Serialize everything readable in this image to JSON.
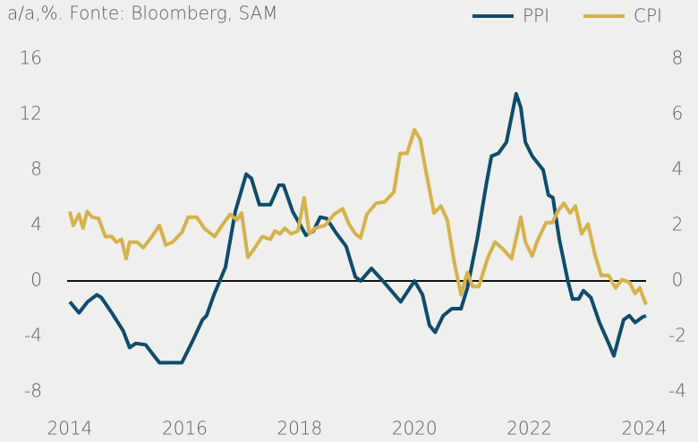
{
  "chart_data": {
    "type": "line",
    "title": "a/a,%. Fonte: Bloomberg, SAM",
    "legend": "top-right",
    "xlim": [
      2014,
      2024
    ],
    "xticks": [
      2014,
      2016,
      2018,
      2020,
      2022,
      2024
    ],
    "ylim": [
      -9,
      17
    ],
    "yticks": [
      -8,
      -4,
      0,
      4,
      8,
      12,
      16
    ],
    "y2lim": [
      -4.5,
      8.5
    ],
    "y2ticks": [
      -4,
      -2,
      0,
      2,
      4,
      6,
      8
    ],
    "series": [
      {
        "name": "PPI",
        "color": "#0f4c6b",
        "axis": "y",
        "x": [
          2014.0,
          2014.16,
          2014.31,
          2014.47,
          2014.55,
          2014.73,
          2014.93,
          2015.04,
          2015.15,
          2015.32,
          2015.43,
          2015.56,
          2015.95,
          2016.13,
          2016.31,
          2016.38,
          2016.51,
          2016.71,
          2016.88,
          2017.07,
          2017.16,
          2017.3,
          2017.49,
          2017.64,
          2017.72,
          2017.88,
          2018.11,
          2018.24,
          2018.36,
          2018.47,
          2018.63,
          2018.81,
          2018.97,
          2019.06,
          2019.25,
          2019.45,
          2019.76,
          2020.0,
          2020.14,
          2020.26,
          2020.36,
          2020.5,
          2020.65,
          2020.81,
          2020.92,
          2021.09,
          2021.25,
          2021.34,
          2021.46,
          2021.6,
          2021.77,
          2021.85,
          2021.93,
          2022.05,
          2022.24,
          2022.33,
          2022.41,
          2022.52,
          2022.67,
          2022.75,
          2022.86,
          2022.94,
          2023.07,
          2023.22,
          2023.38,
          2023.47,
          2023.56,
          2023.64,
          2023.74,
          2023.84,
          2023.97,
          2024.03
        ],
        "values": [
          -1.5,
          -2.3,
          -1.5,
          -1.0,
          -1.2,
          -2.3,
          -3.6,
          -4.8,
          -4.5,
          -4.6,
          -5.2,
          -5.9,
          -5.9,
          -4.4,
          -2.8,
          -2.5,
          -1.0,
          1.0,
          5.0,
          7.7,
          7.4,
          5.5,
          5.5,
          6.9,
          6.9,
          5.0,
          3.3,
          3.6,
          4.6,
          4.5,
          3.5,
          2.5,
          0.3,
          0.0,
          0.9,
          0.0,
          -1.5,
          0.0,
          -1.0,
          -3.2,
          -3.7,
          -2.5,
          -2.0,
          -2.0,
          -0.5,
          3.0,
          7.0,
          9.0,
          9.2,
          10.0,
          13.5,
          12.5,
          10.0,
          9.0,
          8.0,
          6.2,
          6.0,
          3.0,
          0.0,
          -1.3,
          -1.3,
          -0.7,
          -1.2,
          -3.0,
          -4.5,
          -5.4,
          -4.0,
          -2.8,
          -2.5,
          -3.0,
          -2.6,
          -2.5
        ]
      },
      {
        "name": "CPI",
        "color": "#d6b24c",
        "axis": "y2",
        "x": [
          2014.0,
          2014.06,
          2014.16,
          2014.23,
          2014.3,
          2014.39,
          2014.5,
          2014.62,
          2014.73,
          2014.81,
          2014.9,
          2014.98,
          2015.04,
          2015.17,
          2015.28,
          2015.43,
          2015.56,
          2015.67,
          2015.79,
          2015.95,
          2016.06,
          2016.21,
          2016.34,
          2016.52,
          2016.65,
          2016.79,
          2016.91,
          2016.99,
          2017.1,
          2017.19,
          2017.35,
          2017.49,
          2017.57,
          2017.66,
          2017.74,
          2017.85,
          2017.97,
          2018.08,
          2018.17,
          2018.27,
          2018.44,
          2018.6,
          2018.75,
          2018.86,
          2018.97,
          2019.06,
          2019.17,
          2019.33,
          2019.48,
          2019.64,
          2019.75,
          2019.87,
          2020.0,
          2020.1,
          2020.18,
          2020.34,
          2020.46,
          2020.57,
          2020.69,
          2020.81,
          2020.92,
          2021.01,
          2021.12,
          2021.27,
          2021.4,
          2021.54,
          2021.69,
          2021.85,
          2021.93,
          2022.05,
          2022.13,
          2022.29,
          2022.4,
          2022.49,
          2022.6,
          2022.71,
          2022.8,
          2022.91,
          2023.02,
          2023.14,
          2023.25,
          2023.38,
          2023.5,
          2023.61,
          2023.74,
          2023.84,
          2023.92,
          2024.03
        ],
        "values": [
          2.5,
          2.0,
          2.4,
          1.9,
          2.5,
          2.3,
          2.25,
          1.6,
          1.6,
          1.4,
          1.5,
          0.8,
          1.4,
          1.4,
          1.2,
          1.6,
          2.0,
          1.3,
          1.4,
          1.75,
          2.3,
          2.3,
          1.9,
          1.6,
          2.0,
          2.4,
          2.2,
          2.45,
          0.85,
          1.1,
          1.6,
          1.5,
          1.8,
          1.7,
          1.9,
          1.7,
          1.8,
          3.0,
          1.7,
          1.9,
          2.0,
          2.4,
          2.6,
          2.05,
          1.7,
          1.55,
          2.4,
          2.8,
          2.85,
          3.2,
          4.6,
          4.6,
          5.45,
          5.1,
          4.15,
          2.45,
          2.7,
          2.2,
          0.7,
          -0.5,
          0.3,
          -0.2,
          -0.2,
          0.8,
          1.4,
          1.15,
          0.8,
          2.3,
          1.4,
          0.9,
          1.4,
          2.1,
          2.1,
          2.5,
          2.8,
          2.45,
          2.7,
          1.7,
          2.05,
          0.95,
          0.2,
          0.2,
          -0.25,
          0.05,
          -0.05,
          -0.45,
          -0.25,
          -0.85
        ]
      }
    ]
  }
}
